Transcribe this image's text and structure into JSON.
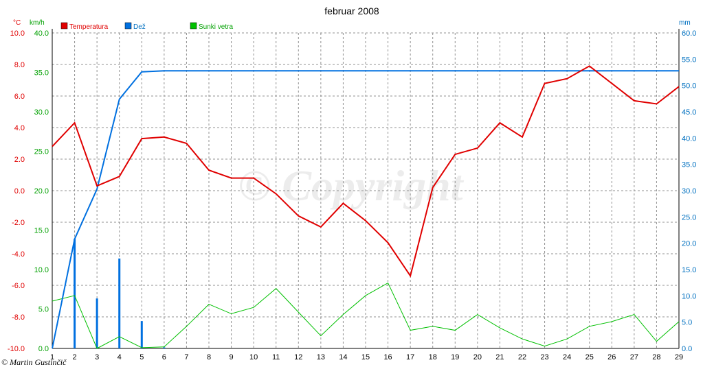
{
  "chart_data": {
    "type": "line",
    "title": "februar 2008",
    "units": {
      "left_temp": "°C",
      "left_wind": "km/h",
      "right_rain": "mm"
    },
    "x": [
      1,
      2,
      3,
      4,
      5,
      6,
      7,
      8,
      9,
      10,
      11,
      12,
      13,
      14,
      15,
      16,
      17,
      18,
      19,
      20,
      21,
      22,
      23,
      24,
      25,
      26,
      27,
      28,
      29
    ],
    "x_tick_labels": [
      "1",
      "2",
      "3",
      "4",
      "5",
      "6",
      "7",
      "8",
      "9",
      "10",
      "11",
      "12",
      "13",
      "14",
      "15",
      "16",
      "17",
      "18",
      "19",
      "20",
      "21",
      "22",
      "23",
      "24",
      "25",
      "26",
      "27",
      "28",
      "29"
    ],
    "axes": {
      "temperature": {
        "ylim": [
          -10,
          10
        ],
        "ticks": [
          "-10.0",
          "-8.0",
          "-6.0",
          "-4.0",
          "-2.0",
          "0.0",
          "2.0",
          "4.0",
          "6.0",
          "8.0",
          "10.0"
        ]
      },
      "wind": {
        "ylim": [
          0,
          40
        ],
        "ticks": [
          "0.0",
          "5.0",
          "10.0",
          "15.0",
          "20.0",
          "25.0",
          "30.0",
          "35.0",
          "40.0"
        ]
      },
      "rain": {
        "ylim": [
          0,
          60
        ],
        "ticks": [
          "0.0",
          "5.0",
          "10.0",
          "15.0",
          "20.0",
          "25.0",
          "30.0",
          "35.0",
          "40.0",
          "45.0",
          "50.0",
          "55.0",
          "60.0"
        ]
      }
    },
    "grid": true,
    "legend_position": "top",
    "series": [
      {
        "name": "Temperatura",
        "type": "line",
        "axis": "temperature",
        "color": "#e00000",
        "values": [
          2.8,
          4.3,
          0.3,
          0.9,
          3.3,
          3.4,
          3.0,
          1.3,
          0.8,
          0.8,
          -0.2,
          -1.6,
          -2.3,
          -0.8,
          -1.9,
          -3.3,
          -5.4,
          0.2,
          2.3,
          2.7,
          4.3,
          3.4,
          6.8,
          7.1,
          7.9,
          6.8,
          5.7,
          5.5,
          6.6
        ]
      },
      {
        "name": "Dež",
        "type": "line+bar",
        "axis": "rain",
        "color": "#0070e0",
        "cumulative": [
          0.0,
          20.8,
          30.3,
          47.4,
          52.6,
          52.8,
          52.8,
          52.8,
          52.8,
          52.8,
          52.8,
          52.8,
          52.8,
          52.8,
          52.8,
          52.8,
          52.8,
          52.8,
          52.8,
          52.8,
          52.8,
          52.8,
          52.8,
          52.8,
          52.8,
          52.8,
          52.8,
          52.8,
          52.8
        ],
        "daily": [
          0.0,
          20.8,
          9.5,
          17.1,
          5.2,
          0.2,
          0,
          0,
          0,
          0,
          0,
          0,
          0,
          0,
          0,
          0,
          0,
          0,
          0,
          0,
          0,
          0,
          0,
          0,
          0,
          0,
          0,
          0,
          0
        ]
      },
      {
        "name": "Sunki vetra",
        "type": "line",
        "axis": "wind",
        "color": "#00c000",
        "values": [
          6.0,
          6.7,
          0.0,
          1.5,
          0.1,
          0.2,
          2.8,
          5.6,
          4.4,
          5.2,
          7.6,
          4.6,
          1.6,
          4.3,
          6.7,
          8.3,
          2.3,
          2.8,
          2.3,
          4.3,
          2.6,
          1.2,
          0.3,
          1.2,
          2.8,
          3.4,
          4.3,
          0.9,
          3.4
        ]
      }
    ],
    "colors": {
      "temp_axis": "#e00000",
      "wind_axis": "#00a000",
      "rain_axis": "#0070c0"
    },
    "watermark": "© Copyright",
    "credit": "© Martin Gustinčič"
  }
}
